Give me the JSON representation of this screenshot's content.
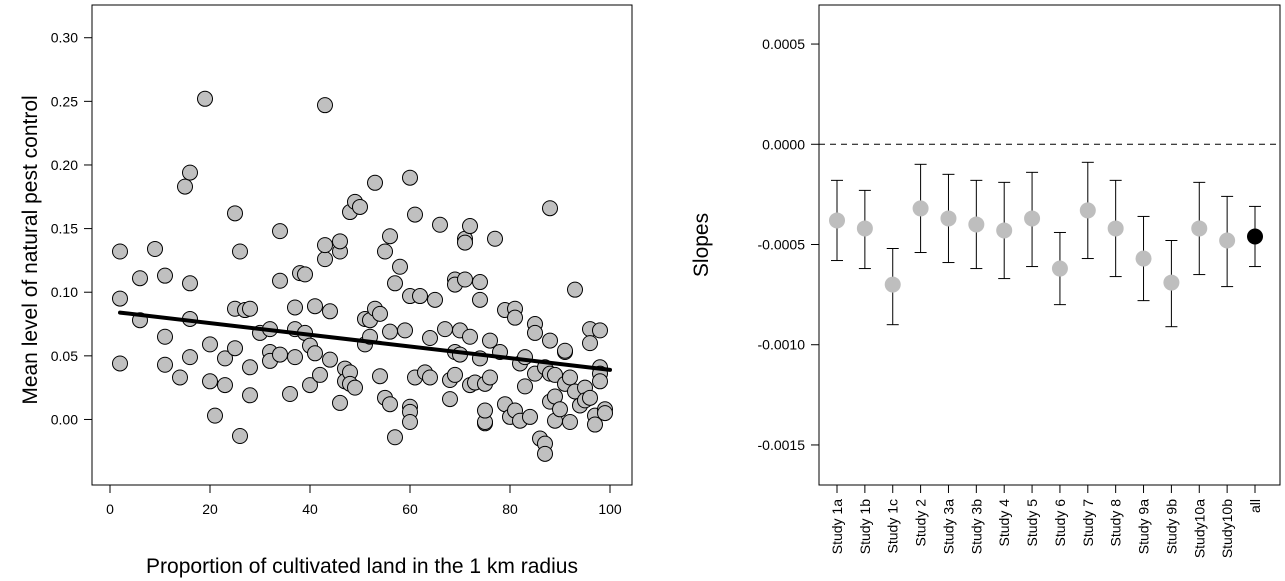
{
  "chart_data": [
    {
      "type": "scatter",
      "title": "",
      "xlabel": "Proportion of cultivated land in the 1 km radius",
      "ylabel": "Mean level of natural pest control",
      "xlim": [
        0,
        100
      ],
      "ylim": [
        -0.035,
        0.31
      ],
      "xticks": [
        0,
        20,
        40,
        60,
        80,
        100
      ],
      "yticks": [
        0.0,
        0.05,
        0.1,
        0.15,
        0.2,
        0.25,
        0.3
      ],
      "ytick_labels": [
        "0.00",
        "0.05",
        "0.10",
        "0.15",
        "0.20",
        "0.25",
        "0.30"
      ],
      "grid": false,
      "point_color": "#c0c0c0",
      "point_edge_color": "#000000",
      "points": [
        [
          2,
          0.132
        ],
        [
          2,
          0.095
        ],
        [
          2,
          0.044
        ],
        [
          6,
          0.111
        ],
        [
          6,
          0.078
        ],
        [
          9,
          0.134
        ],
        [
          11,
          0.113
        ],
        [
          11,
          0.065
        ],
        [
          11,
          0.043
        ],
        [
          14,
          0.033
        ],
        [
          15,
          0.183
        ],
        [
          16,
          0.194
        ],
        [
          16,
          0.107
        ],
        [
          16,
          0.079
        ],
        [
          16,
          0.049
        ],
        [
          19,
          0.252
        ],
        [
          20,
          0.059
        ],
        [
          20,
          0.03
        ],
        [
          21,
          0.003
        ],
        [
          23,
          0.048
        ],
        [
          23,
          0.027
        ],
        [
          25,
          0.162
        ],
        [
          25,
          0.087
        ],
        [
          25,
          0.056
        ],
        [
          26,
          0.132
        ],
        [
          26,
          -0.013
        ],
        [
          27,
          0.086
        ],
        [
          28,
          0.087
        ],
        [
          28,
          0.041
        ],
        [
          28,
          0.019
        ],
        [
          30,
          0.068
        ],
        [
          32,
          0.071
        ],
        [
          32,
          0.053
        ],
        [
          32,
          0.046
        ],
        [
          34,
          0.148
        ],
        [
          34,
          0.109
        ],
        [
          34,
          0.051
        ],
        [
          36,
          0.02
        ],
        [
          37,
          0.088
        ],
        [
          37,
          0.071
        ],
        [
          37,
          0.049
        ],
        [
          38,
          0.115
        ],
        [
          39,
          0.114
        ],
        [
          39,
          0.068
        ],
        [
          40,
          0.058
        ],
        [
          40,
          0.027
        ],
        [
          41,
          0.089
        ],
        [
          41,
          0.052
        ],
        [
          42,
          0.035
        ],
        [
          43,
          0.247
        ],
        [
          43,
          0.126
        ],
        [
          43,
          0.137
        ],
        [
          44,
          0.085
        ],
        [
          44,
          0.047
        ],
        [
          46,
          0.132
        ],
        [
          46,
          0.14
        ],
        [
          46,
          0.013
        ],
        [
          47,
          0.04
        ],
        [
          47,
          0.03
        ],
        [
          48,
          0.163
        ],
        [
          48,
          0.037
        ],
        [
          48,
          0.028
        ],
        [
          49,
          0.171
        ],
        [
          49,
          0.025
        ],
        [
          50,
          0.167
        ],
        [
          51,
          0.079
        ],
        [
          51,
          0.059
        ],
        [
          52,
          0.065
        ],
        [
          52,
          0.078
        ],
        [
          53,
          0.186
        ],
        [
          53,
          0.087
        ],
        [
          54,
          0.083
        ],
        [
          54,
          0.034
        ],
        [
          55,
          0.132
        ],
        [
          55,
          0.017
        ],
        [
          56,
          0.144
        ],
        [
          56,
          0.069
        ],
        [
          56,
          0.012
        ],
        [
          57,
          0.107
        ],
        [
          57,
          -0.014
        ],
        [
          58,
          0.12
        ],
        [
          59,
          0.07
        ],
        [
          60,
          0.19
        ],
        [
          60,
          0.097
        ],
        [
          60,
          0.01
        ],
        [
          60,
          0.006
        ],
        [
          60,
          -0.002
        ],
        [
          61,
          0.161
        ],
        [
          61,
          0.033
        ],
        [
          62,
          0.097
        ],
        [
          63,
          0.037
        ],
        [
          64,
          0.064
        ],
        [
          64,
          0.033
        ],
        [
          65,
          0.094
        ],
        [
          66,
          0.153
        ],
        [
          67,
          0.071
        ],
        [
          68,
          0.031
        ],
        [
          68,
          0.016
        ],
        [
          69,
          0.11
        ],
        [
          69,
          0.106
        ],
        [
          69,
          0.053
        ],
        [
          69,
          0.035
        ],
        [
          70,
          0.07
        ],
        [
          70,
          0.051
        ],
        [
          71,
          0.11
        ],
        [
          71,
          0.142
        ],
        [
          71,
          0.139
        ],
        [
          72,
          0.152
        ],
        [
          72,
          0.065
        ],
        [
          72,
          0.027
        ],
        [
          73,
          0.029
        ],
        [
          74,
          0.108
        ],
        [
          74,
          0.094
        ],
        [
          74,
          0.048
        ],
        [
          75,
          -0.003
        ],
        [
          75,
          -0.002
        ],
        [
          75,
          0.028
        ],
        [
          75,
          0.007
        ],
        [
          76,
          0.062
        ],
        [
          76,
          0.033
        ],
        [
          77,
          0.142
        ],
        [
          78,
          0.053
        ],
        [
          79,
          0.086
        ],
        [
          79,
          0.012
        ],
        [
          80,
          0.002
        ],
        [
          81,
          0.087
        ],
        [
          81,
          0.08
        ],
        [
          81,
          0.007
        ],
        [
          82,
          0.044
        ],
        [
          82,
          -0.001
        ],
        [
          83,
          0.026
        ],
        [
          83,
          0.049
        ],
        [
          84,
          0.002
        ],
        [
          85,
          0.075
        ],
        [
          85,
          0.068
        ],
        [
          85,
          0.036
        ],
        [
          86,
          -0.015
        ],
        [
          87,
          -0.019
        ],
        [
          87,
          -0.027
        ],
        [
          87,
          0.041
        ],
        [
          88,
          0.014
        ],
        [
          88,
          0.036
        ],
        [
          88,
          0.166
        ],
        [
          88,
          0.062
        ],
        [
          89,
          0.035
        ],
        [
          89,
          0.018
        ],
        [
          89,
          -0.001
        ],
        [
          90,
          0.008
        ],
        [
          91,
          0.053
        ],
        [
          91,
          0.054
        ],
        [
          91,
          0.028
        ],
        [
          92,
          0.033
        ],
        [
          92,
          -0.002
        ],
        [
          93,
          0.102
        ],
        [
          93,
          0.022
        ],
        [
          94,
          0.011
        ],
        [
          95,
          0.025
        ],
        [
          95,
          0.015
        ],
        [
          96,
          0.071
        ],
        [
          96,
          0.06
        ],
        [
          96,
          0.017
        ],
        [
          97,
          0.003
        ],
        [
          97,
          -0.004
        ],
        [
          98,
          0.07
        ],
        [
          98,
          0.041
        ],
        [
          98,
          0.036
        ],
        [
          98,
          0.03
        ],
        [
          99,
          0.008
        ],
        [
          99,
          0.005
        ]
      ],
      "regression_line": {
        "x": [
          2,
          100
        ],
        "y": [
          0.084,
          0.039
        ],
        "color": "#000000"
      }
    },
    {
      "type": "scatter",
      "title": "",
      "xlabel": "",
      "ylabel": "Slopes",
      "ylim": [
        -0.0016,
        0.0006
      ],
      "yticks": [
        -0.0015,
        -0.001,
        -0.0005,
        0.0,
        0.0005
      ],
      "ytick_labels": [
        "-0.0015",
        "-0.0010",
        "-0.0005",
        "0.0000",
        "0.0005"
      ],
      "categories": [
        "Study 1a",
        "Study 1b",
        "Study 1c",
        "Study 2",
        "Study 3a",
        "Study 3b",
        "Study 4",
        "Study 5",
        "Study 6",
        "Study 7",
        "Study 8",
        "Study 9a",
        "Study 9b",
        "Study10a",
        "Study10b",
        "all"
      ],
      "values": [
        -0.00038,
        -0.00042,
        -0.0007,
        -0.00032,
        -0.00037,
        -0.0004,
        -0.00043,
        -0.00037,
        -0.00062,
        -0.00033,
        -0.00042,
        -0.00057,
        -0.00069,
        -0.00042,
        -0.00048,
        -0.00046
      ],
      "error_low": [
        -0.00058,
        -0.00062,
        -0.0009,
        -0.00054,
        -0.00059,
        -0.00062,
        -0.00067,
        -0.00061,
        -0.0008,
        -0.00057,
        -0.00066,
        -0.00078,
        -0.00091,
        -0.00065,
        -0.00071,
        -0.00061
      ],
      "error_high": [
        -0.00018,
        -0.00023,
        -0.00052,
        -0.0001,
        -0.00015,
        -0.00018,
        -0.00019,
        -0.00014,
        -0.00044,
        -9e-05,
        -0.00018,
        -0.00036,
        -0.00048,
        -0.00019,
        -0.00026,
        -0.00031
      ],
      "highlight_category": "all",
      "point_colors": {
        "default": "#bebebe",
        "highlight": "#000000"
      },
      "reference_line": {
        "y": 0.0,
        "style": "dashed"
      },
      "grid": false
    }
  ]
}
